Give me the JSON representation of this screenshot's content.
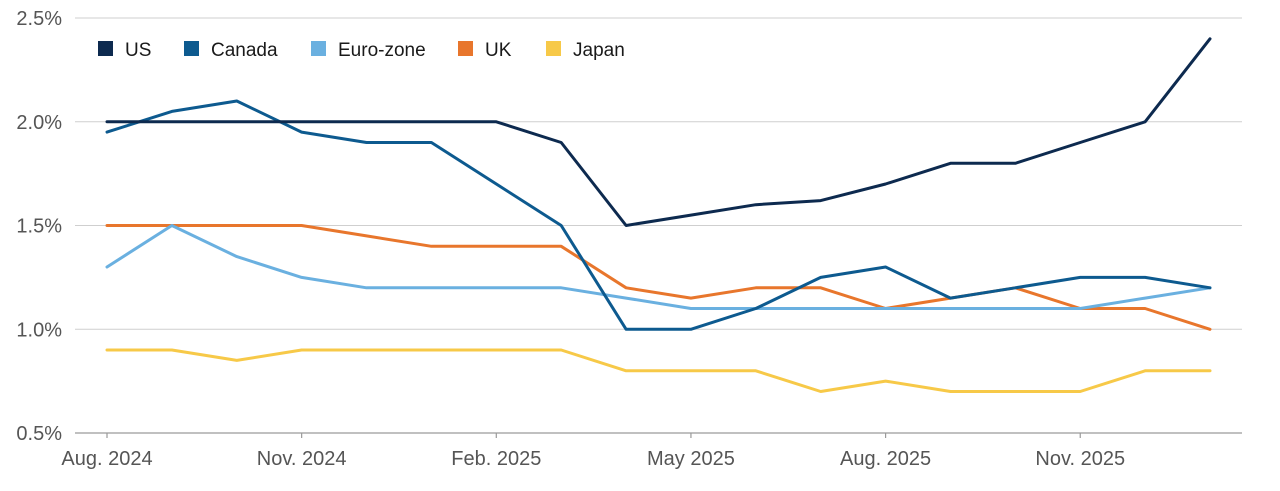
{
  "chart_data": {
    "type": "line",
    "title": "",
    "xlabel": "",
    "ylabel": "",
    "ylim": [
      0.5,
      2.5
    ],
    "y_ticks": [
      2.5,
      2.0,
      1.5,
      1.0,
      0.5
    ],
    "y_tick_labels": [
      "2.5%",
      "2.0%",
      "1.5%",
      "1.0%",
      "0.5%"
    ],
    "x": [
      "Aug. 2024",
      "Sep. 2024",
      "Oct. 2024",
      "Nov. 2024",
      "Dec. 2024",
      "Jan. 2025",
      "Feb. 2025",
      "Mar. 2025",
      "Apr. 2025",
      "May 2025",
      "Jun. 2025",
      "Jul. 2025",
      "Aug. 2025",
      "Sep. 2025",
      "Oct. 2025",
      "Nov. 2025",
      "Dec. 2025",
      "Jan. 2026"
    ],
    "x_tick_labels": [
      "Aug. 2024",
      "Nov. 2024",
      "Feb. 2025",
      "May 2025",
      "Aug. 2025",
      "Nov. 2025"
    ],
    "grid": true,
    "legend_position": "top-left",
    "series": [
      {
        "name": "US",
        "color": "#0d2a4f",
        "values": [
          2.0,
          2.0,
          2.0,
          2.0,
          2.0,
          2.0,
          2.0,
          1.9,
          1.5,
          1.55,
          1.6,
          1.62,
          1.7,
          1.8,
          1.8,
          1.9,
          2.0,
          2.4
        ]
      },
      {
        "name": "Canada",
        "color": "#0d5a8f",
        "values": [
          1.95,
          2.05,
          2.1,
          1.95,
          1.9,
          1.9,
          1.7,
          1.5,
          1.0,
          1.0,
          1.1,
          1.25,
          1.3,
          1.15,
          1.2,
          1.25,
          1.25,
          1.2
        ]
      },
      {
        "name": "Euro-zone",
        "color": "#6ab0e0",
        "values": [
          1.3,
          1.5,
          1.35,
          1.25,
          1.2,
          1.2,
          1.2,
          1.2,
          1.15,
          1.1,
          1.1,
          1.1,
          1.1,
          1.1,
          1.1,
          1.1,
          1.15,
          1.2
        ]
      },
      {
        "name": "UK",
        "color": "#e8762c",
        "values": [
          1.5,
          1.5,
          1.5,
          1.5,
          1.45,
          1.4,
          1.4,
          1.4,
          1.2,
          1.15,
          1.2,
          1.2,
          1.1,
          1.15,
          1.2,
          1.1,
          1.1,
          1.0
        ]
      },
      {
        "name": "Japan",
        "color": "#f7c948",
        "values": [
          0.9,
          0.9,
          0.85,
          0.9,
          0.9,
          0.9,
          0.9,
          0.9,
          0.8,
          0.8,
          0.8,
          0.7,
          0.75,
          0.7,
          0.7,
          0.7,
          0.8,
          0.8
        ]
      }
    ]
  }
}
